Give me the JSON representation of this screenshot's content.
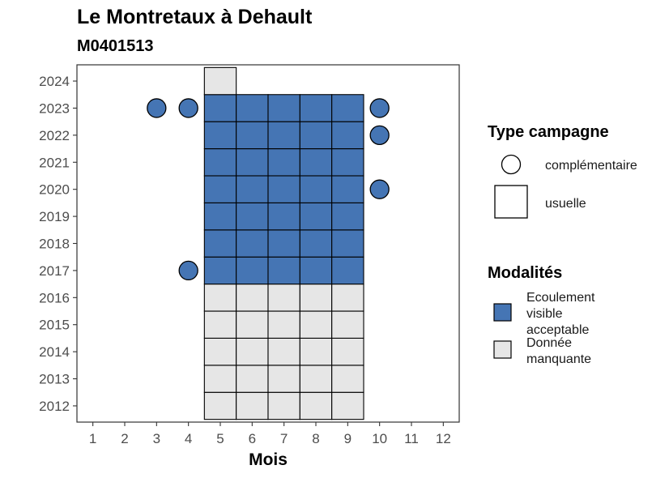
{
  "chart_data": {
    "type": "heatmap",
    "title": "Le Montretaux à Dehault",
    "subtitle": "M0401513",
    "xlabel": "Mois",
    "ylabel": "",
    "x_ticks": [
      1,
      2,
      3,
      4,
      5,
      6,
      7,
      8,
      9,
      10,
      11,
      12
    ],
    "y_ticks": [
      2012,
      2013,
      2014,
      2015,
      2016,
      2017,
      2018,
      2019,
      2020,
      2021,
      2022,
      2023,
      2024
    ],
    "xlim": [
      0.5,
      12.5
    ],
    "ylim": [
      2011.4,
      2024.6
    ],
    "grid": false,
    "colors": {
      "Ecoulement visible acceptable": "#4575b4",
      "Donnée manquante": "#e6e6e6"
    },
    "usuelle": [
      {
        "year": 2012,
        "months": [
          5,
          6,
          7,
          8,
          9
        ],
        "modalite": "Donnée manquante"
      },
      {
        "year": 2013,
        "months": [
          5,
          6,
          7,
          8,
          9
        ],
        "modalite": "Donnée manquante"
      },
      {
        "year": 2014,
        "months": [
          5,
          6,
          7,
          8,
          9
        ],
        "modalite": "Donnée manquante"
      },
      {
        "year": 2015,
        "months": [
          5,
          6,
          7,
          8,
          9
        ],
        "modalite": "Donnée manquante"
      },
      {
        "year": 2016,
        "months": [
          5,
          6,
          7,
          8,
          9
        ],
        "modalite": "Donnée manquante"
      },
      {
        "year": 2017,
        "months": [
          5,
          6,
          7,
          8,
          9
        ],
        "modalite": "Ecoulement visible acceptable"
      },
      {
        "year": 2018,
        "months": [
          5,
          6,
          7,
          8,
          9
        ],
        "modalite": "Ecoulement visible acceptable"
      },
      {
        "year": 2019,
        "months": [
          5,
          6,
          7,
          8,
          9
        ],
        "modalite": "Ecoulement visible acceptable"
      },
      {
        "year": 2020,
        "months": [
          5,
          6,
          7,
          8,
          9
        ],
        "modalite": "Ecoulement visible acceptable"
      },
      {
        "year": 2021,
        "months": [
          5,
          6,
          7,
          8,
          9
        ],
        "modalite": "Ecoulement visible acceptable"
      },
      {
        "year": 2022,
        "months": [
          5,
          6,
          7,
          8,
          9
        ],
        "modalite": "Ecoulement visible acceptable"
      },
      {
        "year": 2023,
        "months": [
          5,
          6,
          7,
          8,
          9
        ],
        "modalite": "Ecoulement visible acceptable"
      },
      {
        "year": 2024,
        "months": [
          5
        ],
        "modalite": "Donnée manquante"
      }
    ],
    "complementaire": [
      {
        "year": 2017,
        "month": 4,
        "modalite": "Ecoulement visible acceptable"
      },
      {
        "year": 2020,
        "month": 10,
        "modalite": "Ecoulement visible acceptable"
      },
      {
        "year": 2022,
        "month": 10,
        "modalite": "Ecoulement visible acceptable"
      },
      {
        "year": 2023,
        "month": 3,
        "modalite": "Ecoulement visible acceptable"
      },
      {
        "year": 2023,
        "month": 4,
        "modalite": "Ecoulement visible acceptable"
      },
      {
        "year": 2023,
        "month": 10,
        "modalite": "Ecoulement visible acceptable"
      }
    ],
    "legend": {
      "placement": "right",
      "type_title": "Type campagne",
      "type_items": [
        {
          "label": "complémentaire",
          "shape": "circle"
        },
        {
          "label": "usuelle",
          "shape": "square"
        }
      ],
      "modalite_title": "Modalités",
      "modalite_items": [
        {
          "label_lines": [
            "Ecoulement",
            "visible",
            "acceptable"
          ],
          "key": "Ecoulement visible acceptable"
        },
        {
          "label_lines": [
            "Donnée",
            "manquante"
          ],
          "key": "Donnée manquante"
        }
      ]
    }
  }
}
